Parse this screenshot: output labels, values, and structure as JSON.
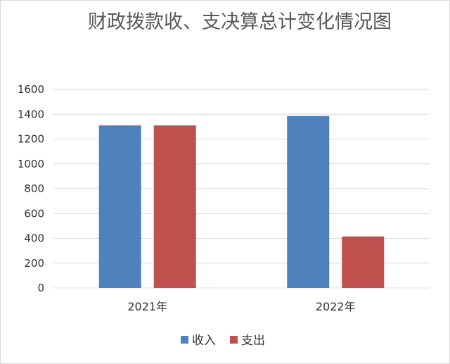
{
  "chart_data": {
    "type": "bar",
    "title": "财政拨款收、支决算总计变化情况图",
    "categories": [
      "2021年",
      "2022年"
    ],
    "series": [
      {
        "name": "收入",
        "values": [
          1310,
          1385
        ],
        "color": "#4f81bd"
      },
      {
        "name": "支出",
        "values": [
          1310,
          415
        ],
        "color": "#c0504d"
      }
    ],
    "ylim": [
      0,
      1600
    ],
    "yticks": [
      0,
      200,
      400,
      600,
      800,
      1000,
      1200,
      1400,
      1600
    ],
    "grid": true,
    "legend_position": "bottom",
    "gridline_color": "#d9d9d9"
  }
}
